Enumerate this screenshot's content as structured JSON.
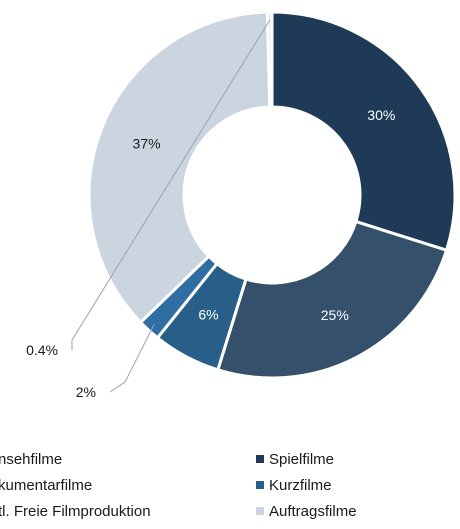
{
  "chart_data": {
    "type": "pie",
    "style": "donut",
    "categories": [
      "Spielfilme",
      "Fernsehfilme",
      "Kurzfilme",
      "Dokumentarfilme",
      "Auftragsfilme",
      "Inkl. Freie Filmproduktion"
    ],
    "values": [
      30,
      25,
      6,
      2,
      37,
      0.4
    ],
    "labels": [
      "30%",
      "25%",
      "6%",
      "2%",
      "37%",
      "0.4%"
    ],
    "colors": [
      "#1e3a57",
      "#34506a",
      "#285f88",
      "#2f6ea3",
      "#cbd5e0",
      "#e1e8ef"
    ],
    "legend": {
      "placement": "bottom",
      "left_column": [
        "nsehfilme",
        "kumentarfilme",
        "tl. Freie Filmproduktion"
      ],
      "right_column": [
        "Spielfilme",
        "Kurzfilme",
        "Auftragsfilme"
      ],
      "left_colors": [
        "#34506a",
        "#2f6ea3",
        "#e1e8ef"
      ],
      "right_colors": [
        "#1e3a57",
        "#285f88",
        "#cbd5e0"
      ]
    }
  }
}
